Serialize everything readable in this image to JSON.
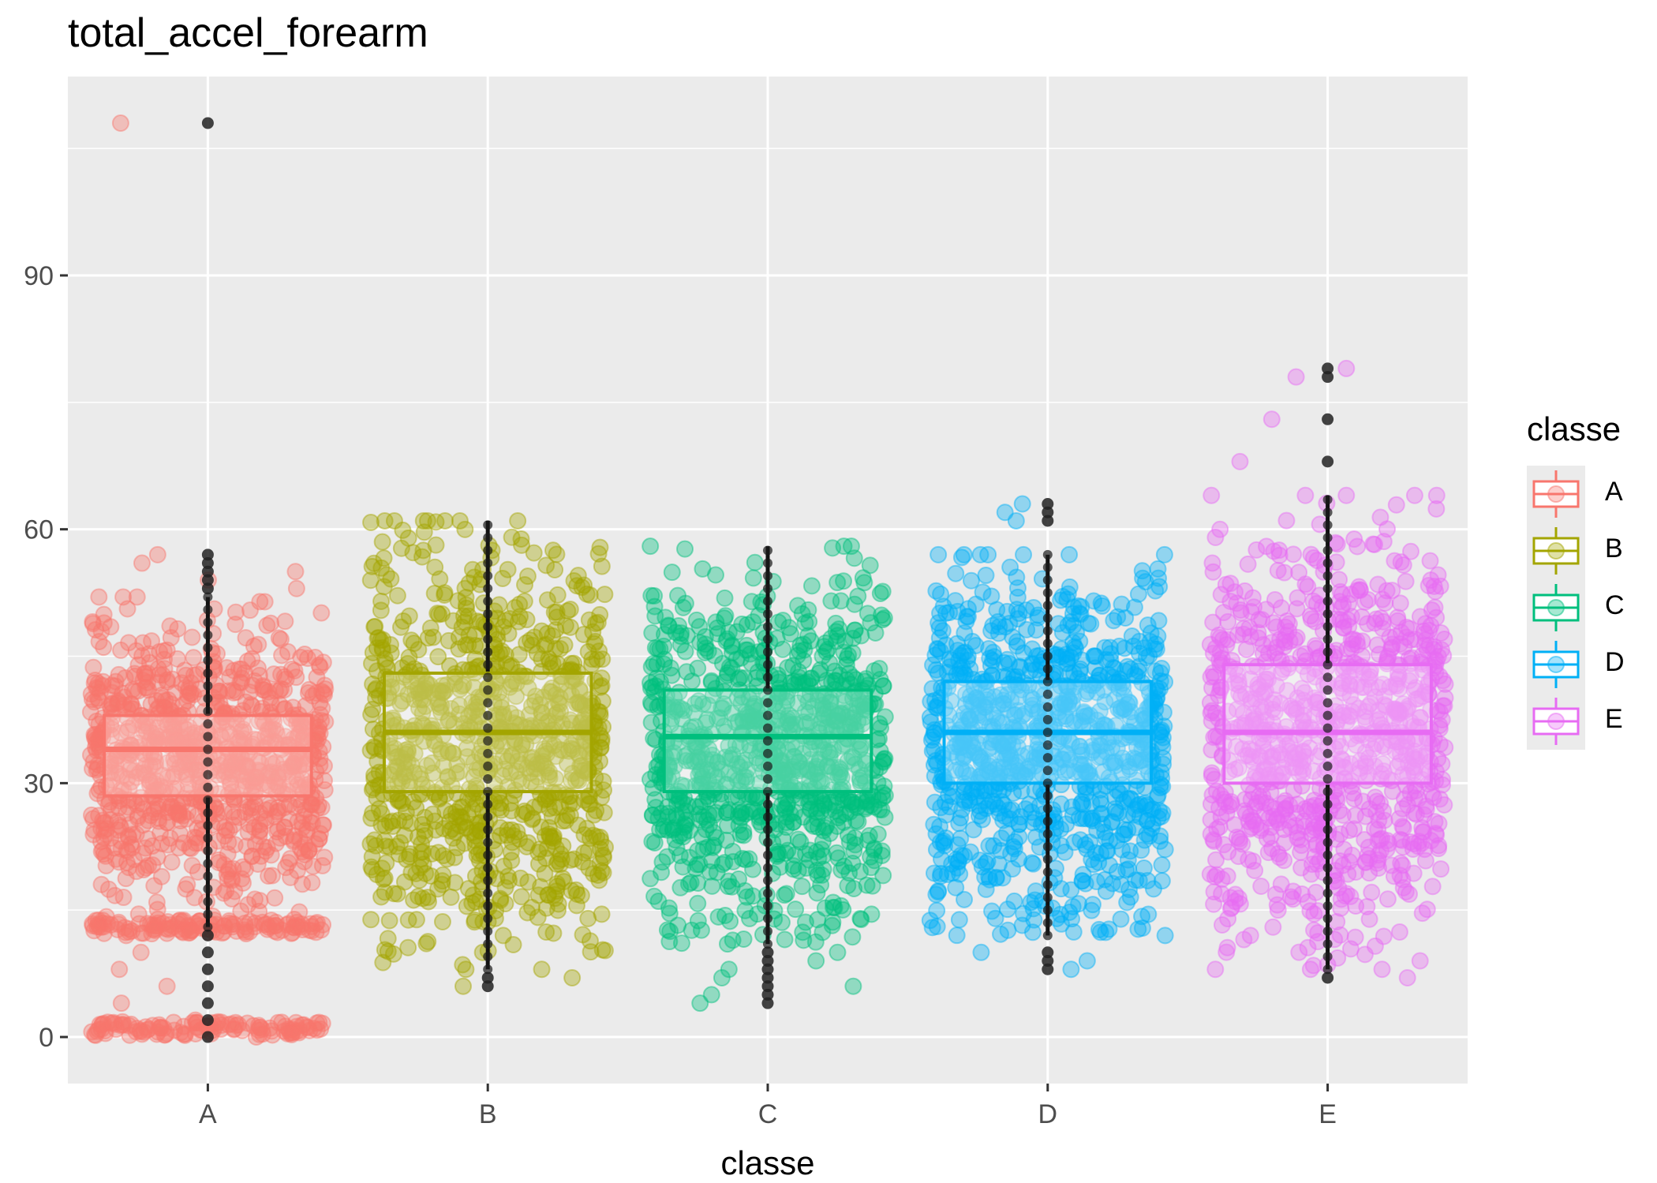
{
  "chart_data": {
    "type": "box",
    "title": "total_accel_forearm",
    "xlabel": "classe",
    "ylabel": "",
    "categories": [
      "A",
      "B",
      "C",
      "D",
      "E"
    ],
    "y_ticks": [
      0,
      30,
      60,
      90
    ],
    "ylim": [
      -5.5,
      113.5
    ],
    "grid": true,
    "overlay": "jittered points (alpha) plus boxplot per class with outliers",
    "legend": {
      "title": "classe",
      "position": "right",
      "entries": [
        "A",
        "B",
        "C",
        "D",
        "E"
      ]
    },
    "colors": {
      "A": "#F8766D",
      "B": "#A3A500",
      "C": "#00BF7D",
      "D": "#00B0F6",
      "E": "#E76BF3"
    },
    "boxes": [
      {
        "class": "A",
        "q1": 28.5,
        "median": 34,
        "q3": 38,
        "whisker_low": 13,
        "whisker_high": 52,
        "outliers": [
          0,
          2,
          4,
          6,
          8,
          10,
          12,
          53,
          54,
          55,
          56,
          57,
          108
        ]
      },
      {
        "class": "B",
        "q1": 29,
        "median": 36,
        "q3": 43,
        "whisker_low": 8,
        "whisker_high": 61,
        "outliers": [
          6,
          7
        ]
      },
      {
        "class": "C",
        "q1": 29,
        "median": 35.5,
        "q3": 41,
        "whisker_low": 11,
        "whisker_high": 58,
        "outliers": [
          4,
          5,
          6,
          7,
          8,
          9,
          10
        ]
      },
      {
        "class": "D",
        "q1": 30,
        "median": 36,
        "q3": 42,
        "whisker_low": 12,
        "whisker_high": 57,
        "outliers": [
          8,
          9,
          10,
          61,
          62,
          63
        ]
      },
      {
        "class": "E",
        "q1": 30,
        "median": 36,
        "q3": 44,
        "whisker_low": 8,
        "whisker_high": 64,
        "outliers": [
          7,
          68,
          73,
          78,
          79
        ]
      }
    ]
  }
}
